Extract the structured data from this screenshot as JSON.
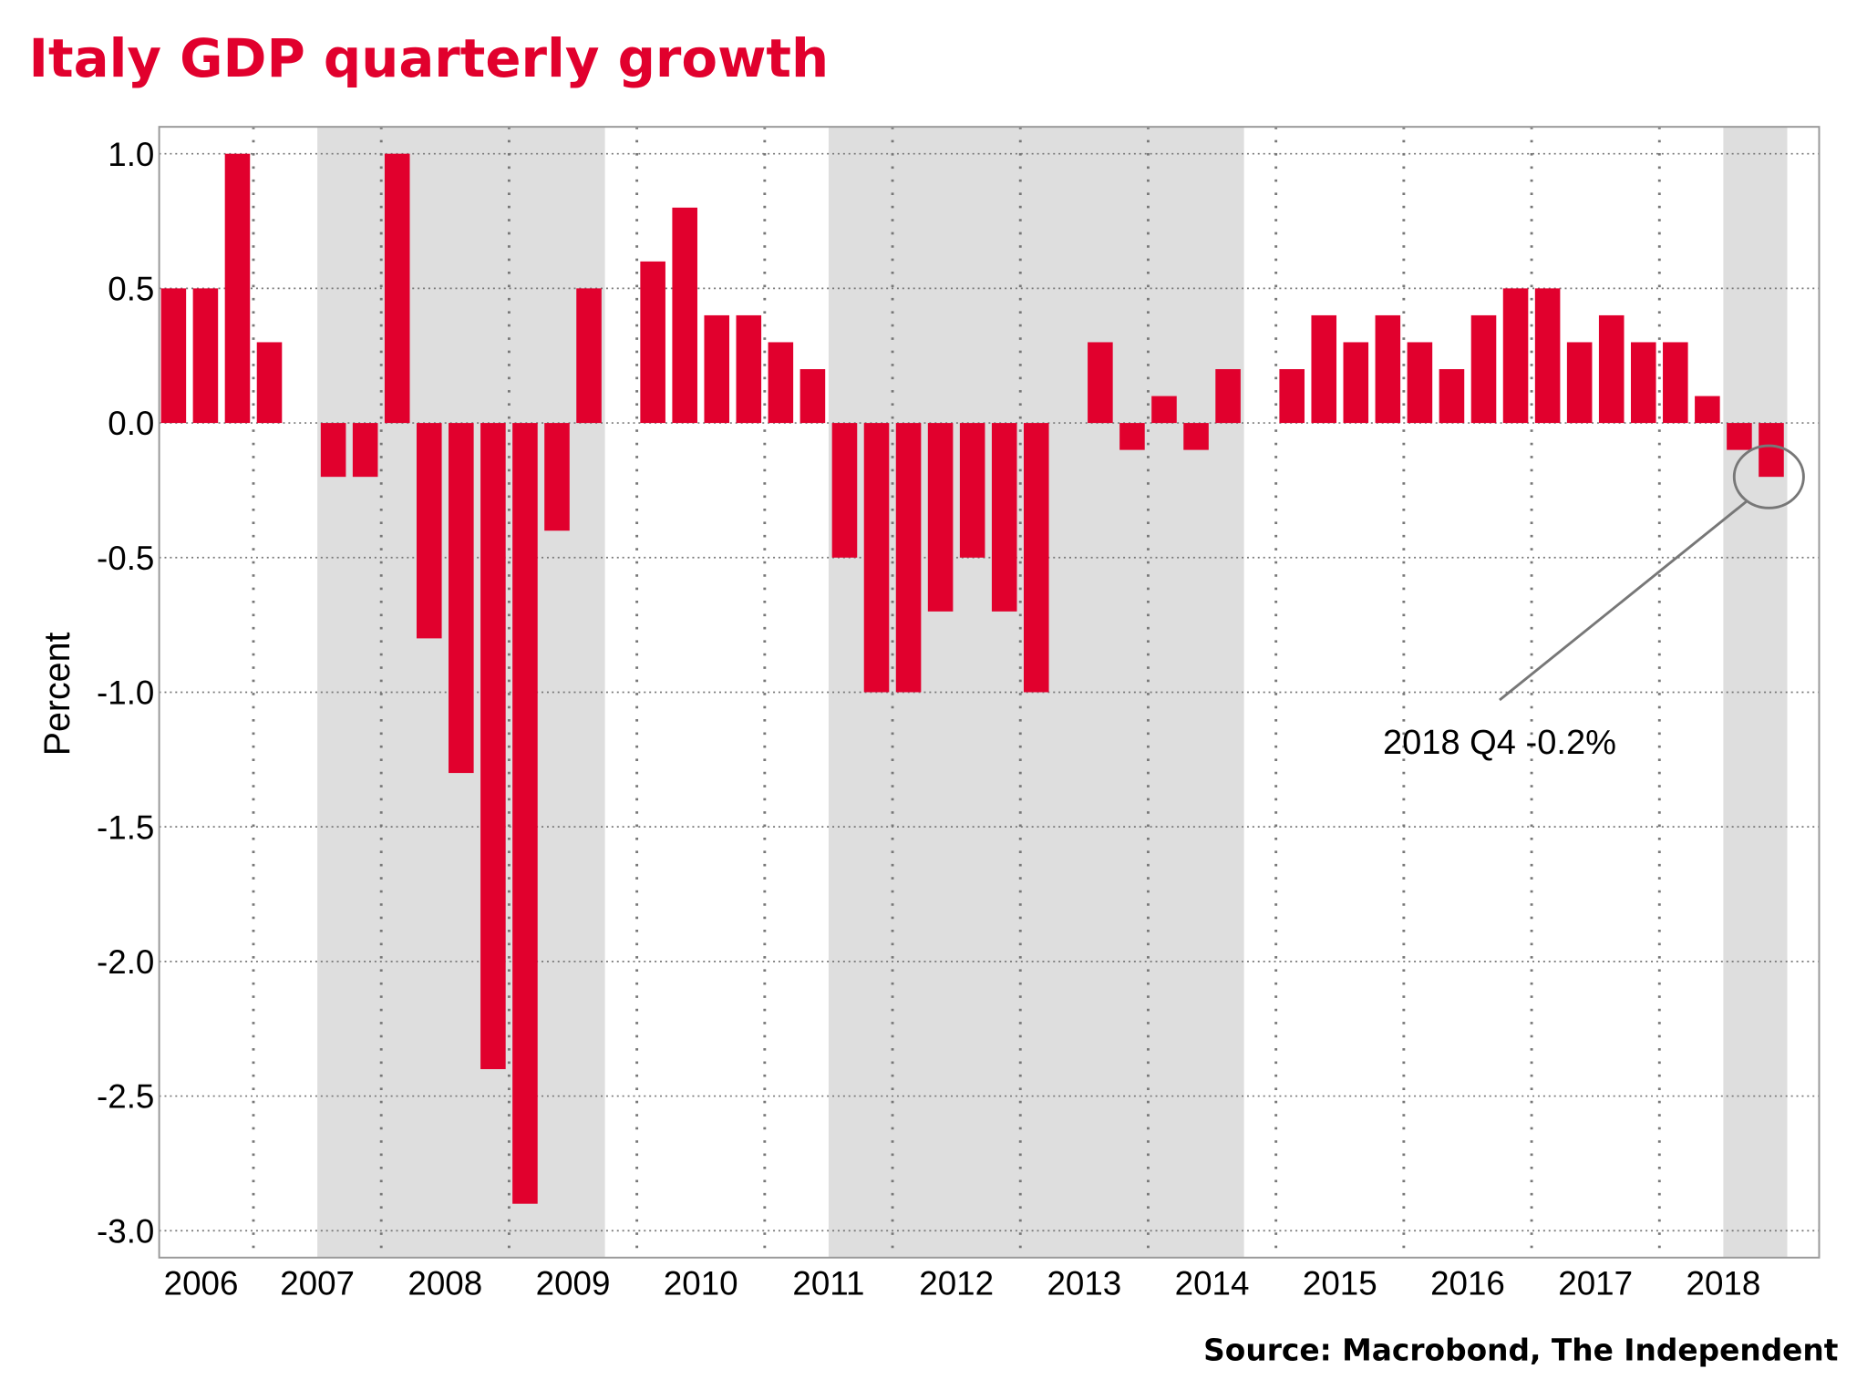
{
  "chart_data": {
    "type": "bar",
    "title": "Italy GDP quarterly growth",
    "ylabel": "Percent",
    "xlabel": "",
    "source": "Source: Macrobond, The Independent",
    "ylim": [
      -3.1,
      1.1
    ],
    "yticks": [
      1.0,
      0.5,
      0.0,
      -0.5,
      -1.0,
      -1.5,
      -2.0,
      -2.5,
      -3.0
    ],
    "ytick_labels": [
      "1.0",
      "0.5",
      "0.0",
      "-0.5",
      "-1.0",
      "-1.5",
      "-2.0",
      "-2.5",
      "-3.0"
    ],
    "xtick_labels": [
      "2006",
      "2007",
      "2008",
      "2009",
      "2010",
      "2011",
      "2012",
      "2013",
      "2014",
      "2015",
      "2016",
      "2017",
      "2018"
    ],
    "grid": true,
    "first_quarter": "2006 Q2",
    "last_quarter": "2018 Q4",
    "values": [
      0.5,
      0.5,
      1.0,
      0.3,
      0.0,
      -0.2,
      -0.2,
      1.0,
      -0.8,
      -1.3,
      -2.4,
      -2.9,
      -0.4,
      0.5,
      0.0,
      0.6,
      0.8,
      0.4,
      0.4,
      0.3,
      0.2,
      -0.5,
      -1.0,
      -1.0,
      -0.7,
      -0.5,
      -0.7,
      -1.0,
      0.0,
      0.3,
      -0.1,
      0.1,
      -0.1,
      0.2,
      0.0,
      0.2,
      0.4,
      0.3,
      0.4,
      0.3,
      0.2,
      0.4,
      0.5,
      0.5,
      0.3,
      0.4,
      0.3,
      0.3,
      0.1,
      -0.1,
      -0.2
    ],
    "shaded_periods": [
      [
        "2007 Q3",
        "2009 Q3"
      ],
      [
        "2011 Q3",
        "2014 Q3"
      ],
      [
        "2018 Q3",
        "2018 Q4"
      ]
    ],
    "annotation": {
      "text": "2018 Q4 -0.2%",
      "quarter": "2018 Q4",
      "value": -0.2
    },
    "colors": {
      "bar": "#e1002d",
      "shade": "#dedede",
      "title": "#e1002d",
      "grid": "#777777"
    }
  }
}
